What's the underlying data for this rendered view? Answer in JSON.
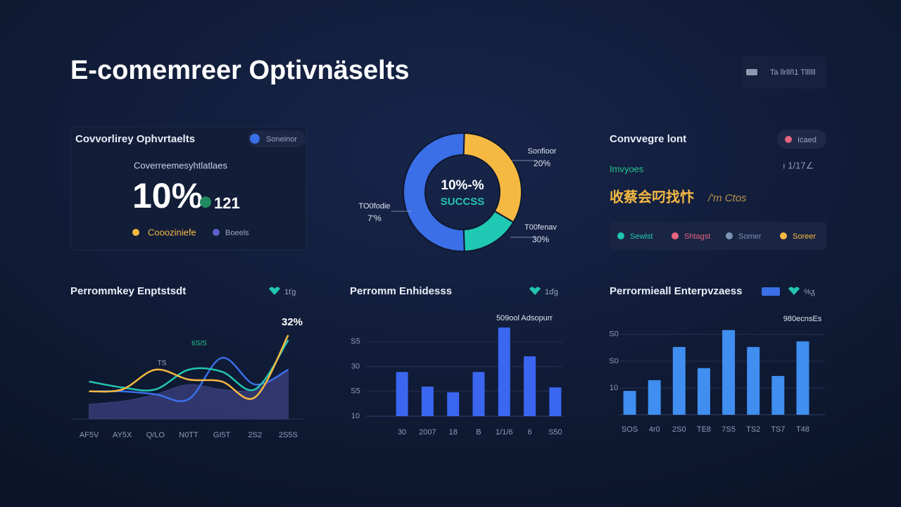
{
  "header": {
    "title": "E-comemreer Optivnäselts",
    "badge": "Ta llrllñ1 Tllllll"
  },
  "kpi_card": {
    "title": "Covvorlirey Ophvrtaelts",
    "badge": "Soneinor",
    "subtitle": "Coverreemesyhtlatlaes",
    "value": "10%",
    "secondary": "121",
    "legend": [
      {
        "name": "Coooziniefe",
        "color": "#f5b942"
      },
      {
        "name": "Boeels",
        "color": "#5a63c9"
      }
    ]
  },
  "status_card": {
    "title": "Convvegre lont",
    "badge": "Icaed",
    "label": "Imvyoes",
    "side": "ı 1/17∠",
    "headline": "收蔡会叼找忭",
    "headline_note": "/'m Ctos",
    "legend": [
      {
        "name": "Sewlst",
        "color": "#22c5b0"
      },
      {
        "name": "Shtagst",
        "color": "#e8647e"
      },
      {
        "name": "Somer",
        "color": "#7b93b5"
      },
      {
        "name": "Soreer",
        "color": "#f5b942"
      }
    ]
  },
  "chart_data": [
    {
      "type": "pie",
      "center_title": "10%-%",
      "center_subtitle": "SUCCSS",
      "values": [
        33,
        16,
        51
      ],
      "colors": [
        "#f5b942",
        "#1fc9b3",
        "#3b6fe8"
      ],
      "annotations": [
        {
          "name": "Sonfioor",
          "text": "20%"
        },
        {
          "name": "T00fenav",
          "text": "30%"
        },
        {
          "name": "TO0fodie",
          "text": "7'%"
        }
      ]
    },
    {
      "type": "line",
      "title": "Perrommkey Enptstsdt",
      "legend_label": "1ťg",
      "categories": [
        "AF5V",
        "AY5X",
        "Q/LO",
        "N0TT",
        "GI5T",
        "2S2",
        "2S5S"
      ],
      "ylim": [
        0,
        100
      ],
      "series": [
        {
          "color": "#3a3f7a",
          "fill": true,
          "values": [
            15,
            18,
            25,
            35,
            30,
            30,
            50
          ]
        },
        {
          "color": "#3b6fe8",
          "values": [
            28,
            28,
            25,
            20,
            62,
            35,
            50
          ]
        },
        {
          "color": "#22c5b0",
          "values": [
            38,
            32,
            30,
            50,
            48,
            30,
            80
          ]
        },
        {
          "color": "#f5b942",
          "values": [
            28,
            30,
            50,
            40,
            38,
            22,
            85
          ]
        }
      ],
      "annotations": [
        {
          "text": "32%"
        },
        {
          "text": "6S/S"
        },
        {
          "text": "TS"
        }
      ]
    },
    {
      "type": "bar",
      "title": "Perromm Enhidesss",
      "legend_label": "1ďg",
      "annotation": "509ool Adsopurr",
      "categories": [
        "30",
        "2007",
        "18",
        "B",
        "1/1/6",
        "6",
        "S50"
      ],
      "values": [
        27.8,
        21.9,
        19.6,
        27.8,
        45.7,
        34.1,
        21.6
      ],
      "color": "#3a66f0",
      "ylim": [
        10,
        50
      ],
      "yticks": [
        {
          "value": 40,
          "label": "S5"
        },
        30,
        {
          "value": 20,
          "label": "S5"
        },
        10
      ],
      "grid": true
    },
    {
      "type": "bar",
      "title": "Perrormieall Enterpvzaess",
      "legend_label": "%ᵹ",
      "annotation": "980ecnsEs",
      "categories": [
        "SOS",
        "4r0",
        "2S0",
        "TE8",
        "7S5",
        "TS2",
        "TS7",
        "T48"
      ],
      "values": [
        8.9,
        12.9,
        25.3,
        17.4,
        31.6,
        25.3,
        14.5,
        27.4
      ],
      "color": "#3f8ef0",
      "ylim": [
        0,
        36
      ],
      "yticks": [
        {
          "value": 30,
          "label": "S0"
        },
        {
          "value": 20,
          "label": "S0"
        },
        10
      ],
      "grid": true
    }
  ]
}
